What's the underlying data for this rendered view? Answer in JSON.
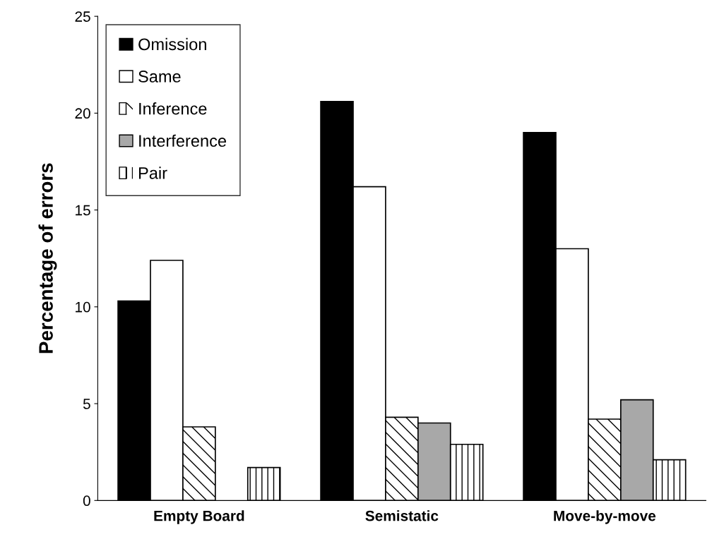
{
  "chart_data": {
    "type": "bar",
    "ylabel": "Percentage of errors",
    "categories": [
      "Empty Board",
      "Semistatic",
      "Move-by-move"
    ],
    "series": [
      {
        "name": "Omission",
        "color": "#000000",
        "values": [
          10.3,
          20.6,
          19.0
        ]
      },
      {
        "name": "Same",
        "color": "#ffffff",
        "values": [
          12.4,
          16.2,
          13.0
        ]
      },
      {
        "name": "Inference",
        "color": "#ffffff",
        "values": [
          3.8,
          4.3,
          4.2
        ]
      },
      {
        "name": "Interference",
        "color": "#a8a8a8",
        "values": [
          null,
          4.0,
          5.2
        ]
      },
      {
        "name": "Pair",
        "color": "#ffffff",
        "values": [
          1.7,
          2.9,
          2.1
        ]
      }
    ],
    "ylim": [
      0,
      25
    ],
    "yticks": [
      0,
      5,
      10,
      15,
      20,
      25
    ],
    "grid": false,
    "legend": "top left"
  }
}
